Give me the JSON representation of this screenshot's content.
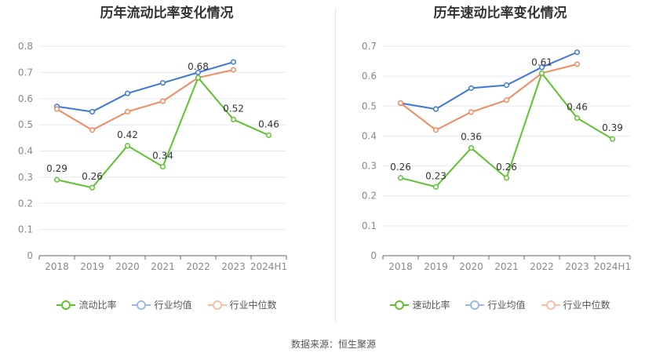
{
  "source": "数据来源：恒生聚源",
  "colors": {
    "company": "#5ec230",
    "avg": "#3a78d8",
    "median": "#f08a60",
    "grid": "#e8e8f0",
    "axis": "#888888"
  },
  "chart_data": [
    {
      "type": "line",
      "title": "历年流动比率变化情况",
      "categories": [
        "2018",
        "2019",
        "2020",
        "2021",
        "2022",
        "2023",
        "2024H1"
      ],
      "ylim": [
        0,
        0.8
      ],
      "yticks": [
        "0",
        "0.1",
        "0.2",
        "0.3",
        "0.4",
        "0.5",
        "0.6",
        "0.7",
        "0.8"
      ],
      "grid": true,
      "legend_position": "bottom",
      "series": [
        {
          "name": "流动比率",
          "values": [
            0.29,
            0.26,
            0.42,
            0.34,
            0.68,
            0.52,
            0.46
          ],
          "labels": [
            "0.29",
            "0.26",
            "0.42",
            "0.34",
            "0.68",
            "0.52",
            "0.46"
          ]
        },
        {
          "name": "行业均值",
          "values": [
            0.57,
            0.55,
            0.62,
            0.66,
            0.7,
            0.74,
            null
          ]
        },
        {
          "name": "行业中位数",
          "values": [
            0.56,
            0.48,
            0.55,
            0.59,
            0.68,
            0.71,
            null
          ]
        }
      ]
    },
    {
      "type": "line",
      "title": "历年速动比率变化情况",
      "categories": [
        "2018",
        "2019",
        "2020",
        "2021",
        "2022",
        "2023",
        "2024H1"
      ],
      "ylim": [
        0,
        0.7
      ],
      "yticks": [
        "0",
        "0.1",
        "0.2",
        "0.3",
        "0.4",
        "0.5",
        "0.6",
        "0.7"
      ],
      "grid": true,
      "legend_position": "bottom",
      "series": [
        {
          "name": "速动比率",
          "values": [
            0.26,
            0.23,
            0.36,
            0.26,
            0.61,
            0.46,
            0.39
          ],
          "labels": [
            "0.26",
            "0.23",
            "0.36",
            "0.26",
            "0.61",
            "0.46",
            "0.39"
          ]
        },
        {
          "name": "行业均值",
          "values": [
            0.51,
            0.49,
            0.56,
            0.57,
            0.63,
            0.68,
            null
          ]
        },
        {
          "name": "行业中位数",
          "values": [
            0.51,
            0.42,
            0.48,
            0.52,
            0.61,
            0.64,
            null
          ]
        }
      ]
    }
  ]
}
